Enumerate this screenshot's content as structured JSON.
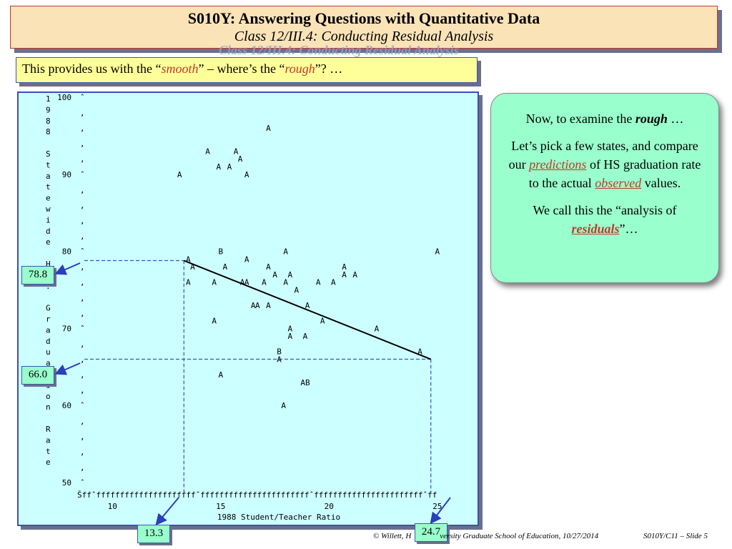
{
  "header": {
    "title": "S010Y: Answering Questions with Quantitative Data",
    "subtitle": "Class 12/III.4: Conducting Residual Analysis"
  },
  "prompt": {
    "before": "This provides us with the “",
    "smooth": "smooth",
    "middle": "” – where’s the “",
    "rough": "rough",
    "after": "”? …"
  },
  "explanation": {
    "p1_before": "Now, to examine the ",
    "p1_rough": "rough",
    "p1_after": " …",
    "p2_before": "Let’s pick a few states, and compare our  ",
    "p2_predictions": "predictions",
    "p2_middle": " of HS graduation rate to the actual ",
    "p2_observed": "observed",
    "p2_after": " values.",
    "p3_before": "We call this the “analysis of ",
    "p3_residuals": "residuals",
    "p3_after": "”…"
  },
  "callouts": {
    "y_high": "78.8",
    "y_low": "66.0",
    "x_low": "13.3",
    "x_high": "24.7"
  },
  "footer": {
    "copyright": "© Willett, H",
    "copyright_tail": "versity Graduate School of Education, 10/27/2014",
    "slide": "S010Y/C11 – Slide 5"
  },
  "chart_data": {
    "type": "scatter",
    "ylabel_vertical": [
      "1",
      "9",
      "8",
      "8",
      "",
      "S",
      "t",
      "a",
      "t",
      "e",
      "w",
      "i",
      "d",
      "e",
      "",
      "H",
      "S",
      ".",
      "",
      "G",
      "r",
      "a",
      "d",
      "u",
      "a",
      "t",
      "i",
      "o",
      "n",
      "",
      "R",
      "a",
      "t",
      "e"
    ],
    "xlabel": "1988 Student/Teacher Ratio",
    "y_ticks": [
      "100",
      "90",
      "80",
      "70",
      "60",
      "50"
    ],
    "x_ticks": [
      "10",
      "15",
      "20",
      "25"
    ],
    "xlim": [
      9.1,
      25.6
    ],
    "ylim": [
      50,
      100
    ],
    "axis_line": "Šffˆfffffffffffffffffffffˆfffffffffffffffffffffffˆfffffffffffffffffffffffˆff",
    "points": [
      {
        "x": 17.2,
        "y": 96,
        "m": "A"
      },
      {
        "x": 14.4,
        "y": 93,
        "m": "A"
      },
      {
        "x": 15.7,
        "y": 93,
        "m": "A"
      },
      {
        "x": 15.9,
        "y": 92,
        "m": "A"
      },
      {
        "x": 14.9,
        "y": 91,
        "m": "A"
      },
      {
        "x": 15.4,
        "y": 91,
        "m": "A"
      },
      {
        "x": 13.1,
        "y": 90,
        "m": "A"
      },
      {
        "x": 16.2,
        "y": 90,
        "m": "A"
      },
      {
        "x": 15.0,
        "y": 80,
        "m": "B"
      },
      {
        "x": 18.0,
        "y": 80,
        "m": "A"
      },
      {
        "x": 25.0,
        "y": 80,
        "m": "A"
      },
      {
        "x": 13.5,
        "y": 79,
        "m": "A"
      },
      {
        "x": 16.2,
        "y": 79,
        "m": "A"
      },
      {
        "x": 13.7,
        "y": 78,
        "m": "A"
      },
      {
        "x": 15.2,
        "y": 78,
        "m": "A"
      },
      {
        "x": 17.2,
        "y": 78,
        "m": "A"
      },
      {
        "x": 20.7,
        "y": 78,
        "m": "A"
      },
      {
        "x": 17.5,
        "y": 77,
        "m": "A"
      },
      {
        "x": 18.2,
        "y": 77,
        "m": "A"
      },
      {
        "x": 20.7,
        "y": 77,
        "m": "A"
      },
      {
        "x": 21.2,
        "y": 77,
        "m": "A"
      },
      {
        "x": 13.5,
        "y": 76,
        "m": "A"
      },
      {
        "x": 14.7,
        "y": 76,
        "m": "A"
      },
      {
        "x": 16.0,
        "y": 76,
        "m": "A"
      },
      {
        "x": 16.2,
        "y": 76,
        "m": "A"
      },
      {
        "x": 17.0,
        "y": 76,
        "m": "A"
      },
      {
        "x": 18.0,
        "y": 76,
        "m": "A"
      },
      {
        "x": 19.5,
        "y": 76,
        "m": "A"
      },
      {
        "x": 20.2,
        "y": 76,
        "m": "A"
      },
      {
        "x": 18.5,
        "y": 75,
        "m": "A"
      },
      {
        "x": 16.5,
        "y": 73,
        "m": "A"
      },
      {
        "x": 16.7,
        "y": 73,
        "m": "A"
      },
      {
        "x": 17.2,
        "y": 73,
        "m": "A"
      },
      {
        "x": 19.0,
        "y": 73,
        "m": "A"
      },
      {
        "x": 14.7,
        "y": 71,
        "m": "A"
      },
      {
        "x": 19.7,
        "y": 71,
        "m": "A"
      },
      {
        "x": 18.2,
        "y": 70,
        "m": "A"
      },
      {
        "x": 22.2,
        "y": 70,
        "m": "A"
      },
      {
        "x": 18.2,
        "y": 69,
        "m": "A"
      },
      {
        "x": 18.9,
        "y": 69,
        "m": "A"
      },
      {
        "x": 17.7,
        "y": 67,
        "m": "B"
      },
      {
        "x": 24.2,
        "y": 67,
        "m": "A"
      },
      {
        "x": 17.7,
        "y": 66,
        "m": "A"
      },
      {
        "x": 15.0,
        "y": 64,
        "m": "A"
      },
      {
        "x": 18.9,
        "y": 63,
        "m": "AB"
      },
      {
        "x": 17.9,
        "y": 60,
        "m": "A"
      }
    ],
    "fitted_line": {
      "x": [
        13.3,
        24.7
      ],
      "y": [
        78.8,
        66.0
      ]
    }
  }
}
